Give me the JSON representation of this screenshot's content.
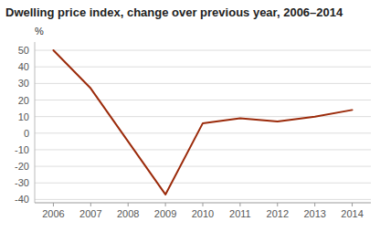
{
  "chart_data": {
    "type": "line",
    "title": "Dwelling price index, change over previous year, 2006–2014",
    "ylabel": "%",
    "x": [
      2006,
      2007,
      2008,
      2009,
      2010,
      2011,
      2012,
      2013,
      2014
    ],
    "values": [
      50,
      27,
      -5,
      -37,
      6,
      9,
      7,
      10,
      14
    ],
    "color": "#9B2A0A",
    "xlim": [
      2005.5,
      2014.5
    ],
    "ylim": [
      -42,
      55
    ],
    "xticks": [
      2006,
      2007,
      2008,
      2009,
      2010,
      2011,
      2012,
      2013,
      2014
    ],
    "yticks": [
      -40,
      -30,
      -20,
      -10,
      0,
      10,
      20,
      30,
      40,
      50
    ],
    "grid": true
  }
}
